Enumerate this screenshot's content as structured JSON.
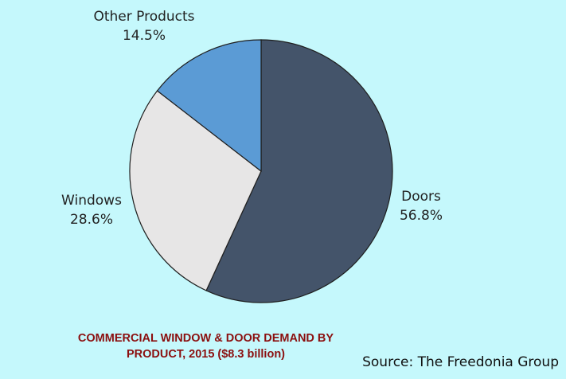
{
  "chart_data": {
    "type": "pie",
    "title_lines": [
      "COMMERCIAL WINDOW & DOOR DEMAND BY",
      "PRODUCT, 2015 ($8.3 billion)"
    ],
    "source": "Source: The Freedonia Group",
    "slices": [
      {
        "label": "Doors",
        "value": 56.8,
        "value_text": "56.8%",
        "color": "#44546a"
      },
      {
        "label": "Windows",
        "value": 28.6,
        "value_text": "28.6%",
        "color": "#e7e6e6"
      },
      {
        "label": "Other Products",
        "value": 14.5,
        "value_text": "14.5%",
        "color": "#5b9bd5"
      }
    ],
    "start": "12 o'clock",
    "direction": "clockwise",
    "legend": "none"
  },
  "colors": {
    "background": "#c5f8fc",
    "title": "#8b0f0f",
    "slice_border": "#1f1f1f"
  }
}
